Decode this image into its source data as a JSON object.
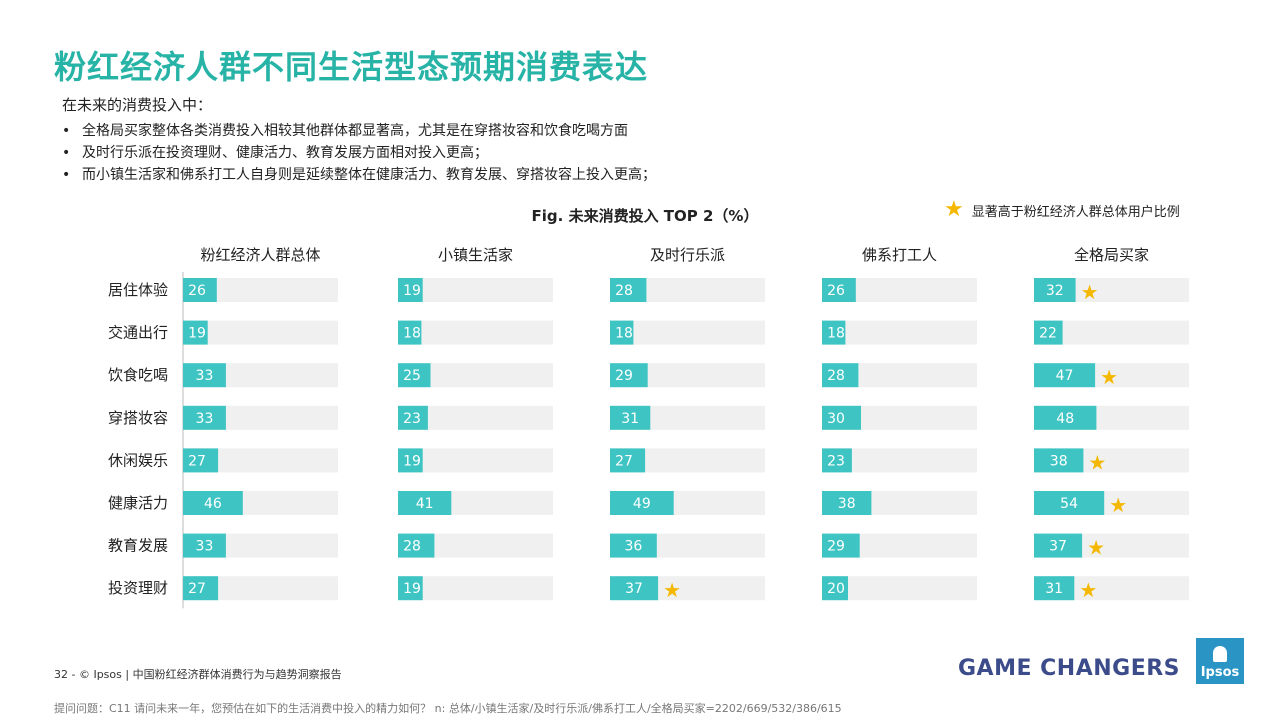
{
  "title": "粉红经济人群不同生活型态预期消费表达",
  "intro": "在未来的消费投入中：",
  "bullets": [
    "全格局买家整体各类消费投入相较其他群体都显著高，尤其是在穿搭妆容和饮食吃喝方面",
    "及时行乐派在投资理财、健康活力、教育发展方面相对投入更高；",
    "而小镇生活家和佛系打工人自身则是延续整体在健康活力、教育发展、穿搭妆容上投入更高；"
  ],
  "legend": {
    "text": "显著高于粉红经济人群总体用户比例",
    "icon": "star-icon"
  },
  "colors": {
    "title": "#27b3a6",
    "bar": "#3ec4c3",
    "track": "#f0f0f0",
    "star": "#f5b800",
    "brand": "#3c4b8a"
  },
  "footer": {
    "page_info": "32  -  © Ipsos  |  中国粉红经济群体消费行为与趋势洞察报告",
    "question_note": "提问问题：C11 请问未来一年，您预估在如下的生活消费中投入的精力如何？ n: 总体/小镇生活家/及时行乐派/佛系打工人/全格局买家=2202/669/532/386/615",
    "brand": "GAME CHANGERS",
    "logo": "Ipsos"
  },
  "chart_data": {
    "type": "bar",
    "orientation": "horizontal",
    "title": "Fig.  未来消费投入 TOP 2（%）",
    "categories": [
      "居住体验",
      "交通出行",
      "饮食吃喝",
      "穿搭妆容",
      "休闲娱乐",
      "健康活力",
      "教育发展",
      "投资理财"
    ],
    "xlim": [
      0,
      100
    ],
    "series": [
      {
        "name": "粉红经济人群总体",
        "values": [
          26,
          19,
          33,
          33,
          27,
          46,
          33,
          27
        ],
        "significant": [
          false,
          false,
          false,
          false,
          false,
          false,
          false,
          false
        ]
      },
      {
        "name": "小镇生活家",
        "values": [
          19,
          18,
          25,
          23,
          19,
          41,
          28,
          19
        ],
        "significant": [
          false,
          false,
          false,
          false,
          false,
          false,
          false,
          false
        ]
      },
      {
        "name": "及时行乐派",
        "values": [
          28,
          18,
          29,
          31,
          27,
          49,
          36,
          37
        ],
        "significant": [
          false,
          false,
          false,
          false,
          false,
          false,
          false,
          true
        ]
      },
      {
        "name": "佛系打工人",
        "values": [
          26,
          18,
          28,
          30,
          23,
          38,
          29,
          20
        ],
        "significant": [
          false,
          false,
          false,
          false,
          false,
          false,
          false,
          false
        ]
      },
      {
        "name": "全格局买家",
        "values": [
          32,
          22,
          47,
          48,
          38,
          54,
          37,
          31
        ],
        "significant": [
          true,
          false,
          true,
          false,
          true,
          true,
          true,
          true
        ]
      }
    ]
  }
}
